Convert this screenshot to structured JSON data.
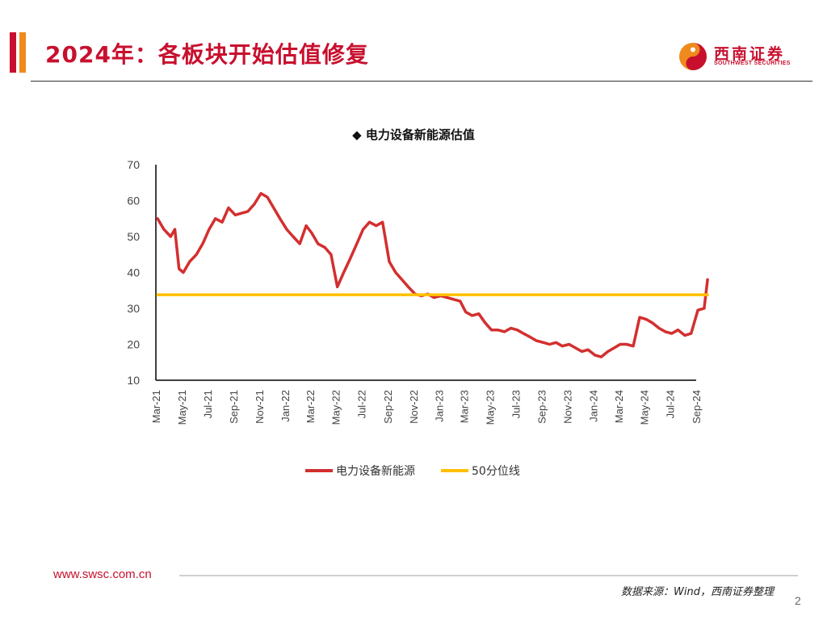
{
  "header": {
    "title": "2024年：各板块开始估值修复",
    "logo_cn": "西南证券",
    "logo_en": "SOUTHWEST SECURITIES"
  },
  "colors": {
    "brand_red": "#c8102e",
    "brand_orange": "#f08a1c",
    "series_red": "#d32f2f",
    "percentile_yellow": "#ffc000"
  },
  "chart_data": {
    "type": "line",
    "title": "◆ 电力设备新能源估值",
    "xlabel": "",
    "ylabel": "",
    "ylim": [
      10,
      70
    ],
    "yticks": [
      10,
      20,
      30,
      40,
      50,
      60,
      70
    ],
    "xlim": [
      "2021-03",
      "2024-09"
    ],
    "x_ticks": [
      "Mar-21",
      "May-21",
      "Jul-21",
      "Sep-21",
      "Nov-21",
      "Jan-22",
      "Mar-22",
      "May-22",
      "Jul-22",
      "Sep-22",
      "Nov-22",
      "Jan-23",
      "Mar-23",
      "May-23",
      "Jul-23",
      "Sep-23",
      "Nov-23",
      "Jan-24",
      "Mar-24",
      "May-24",
      "Jul-24",
      "Sep-24"
    ],
    "grid": false,
    "legend_position": "bottom",
    "series": [
      {
        "name": "电力设备新能源",
        "color": "#d32f2f",
        "x": [
          "2021-03-05",
          "2021-03-20",
          "2021-04-05",
          "2021-04-15",
          "2021-04-25",
          "2021-05-05",
          "2021-05-20",
          "2021-06-05",
          "2021-06-20",
          "2021-07-05",
          "2021-07-20",
          "2021-08-05",
          "2021-08-20",
          "2021-09-05",
          "2021-09-20",
          "2021-10-05",
          "2021-10-20",
          "2021-11-05",
          "2021-11-20",
          "2021-12-05",
          "2021-12-20",
          "2022-01-05",
          "2022-01-20",
          "2022-02-05",
          "2022-02-20",
          "2022-03-05",
          "2022-03-20",
          "2022-04-05",
          "2022-04-20",
          "2022-05-05",
          "2022-05-20",
          "2022-06-05",
          "2022-06-20",
          "2022-07-05",
          "2022-07-20",
          "2022-08-05",
          "2022-08-20",
          "2022-09-05",
          "2022-09-20",
          "2022-10-05",
          "2022-10-20",
          "2022-11-05",
          "2022-11-20",
          "2022-12-05",
          "2022-12-20",
          "2023-01-05",
          "2023-01-20",
          "2023-02-05",
          "2023-02-20",
          "2023-03-05",
          "2023-03-20",
          "2023-04-05",
          "2023-04-20",
          "2023-05-05",
          "2023-05-20",
          "2023-06-05",
          "2023-06-20",
          "2023-07-05",
          "2023-07-20",
          "2023-08-05",
          "2023-08-20",
          "2023-09-05",
          "2023-09-20",
          "2023-10-05",
          "2023-10-20",
          "2023-11-05",
          "2023-11-20",
          "2023-12-05",
          "2023-12-20",
          "2024-01-05",
          "2024-01-20",
          "2024-02-05",
          "2024-02-20",
          "2024-03-05",
          "2024-03-20",
          "2024-04-05",
          "2024-04-20",
          "2024-05-05",
          "2024-05-20",
          "2024-06-05",
          "2024-06-20",
          "2024-07-05",
          "2024-07-20",
          "2024-08-05",
          "2024-08-20",
          "2024-09-05",
          "2024-09-20",
          "2024-09-28"
        ],
        "values": [
          55,
          52,
          50,
          52,
          41,
          40,
          43,
          45,
          48,
          52,
          55,
          54,
          58,
          56,
          56.5,
          57,
          59,
          62,
          61,
          58,
          55,
          52,
          50,
          48,
          53,
          51,
          48,
          47,
          45,
          36,
          40,
          44,
          48,
          52,
          54,
          53,
          54,
          43,
          40,
          38,
          36,
          34,
          33.5,
          34,
          33,
          33.5,
          33,
          32.5,
          32,
          29,
          28,
          28.5,
          26,
          24,
          24,
          23.5,
          24.5,
          24,
          23,
          22,
          21,
          20.5,
          20,
          20.5,
          19.5,
          20,
          19,
          18,
          18.5,
          17,
          16.5,
          18,
          19,
          20,
          20,
          19.5,
          27.5,
          27,
          26,
          24.5,
          23.5,
          23,
          24,
          22.5,
          23,
          29.5,
          30,
          38
        ]
      },
      {
        "name": "50分位线",
        "color": "#ffc000",
        "x": [
          "2021-03-05",
          "2024-09-28"
        ],
        "values": [
          33.8,
          33.8
        ]
      }
    ]
  },
  "footer": {
    "url": "www.swsc.com.cn",
    "source": "数据来源：Wind，西南证券整理",
    "page_number": "2"
  }
}
